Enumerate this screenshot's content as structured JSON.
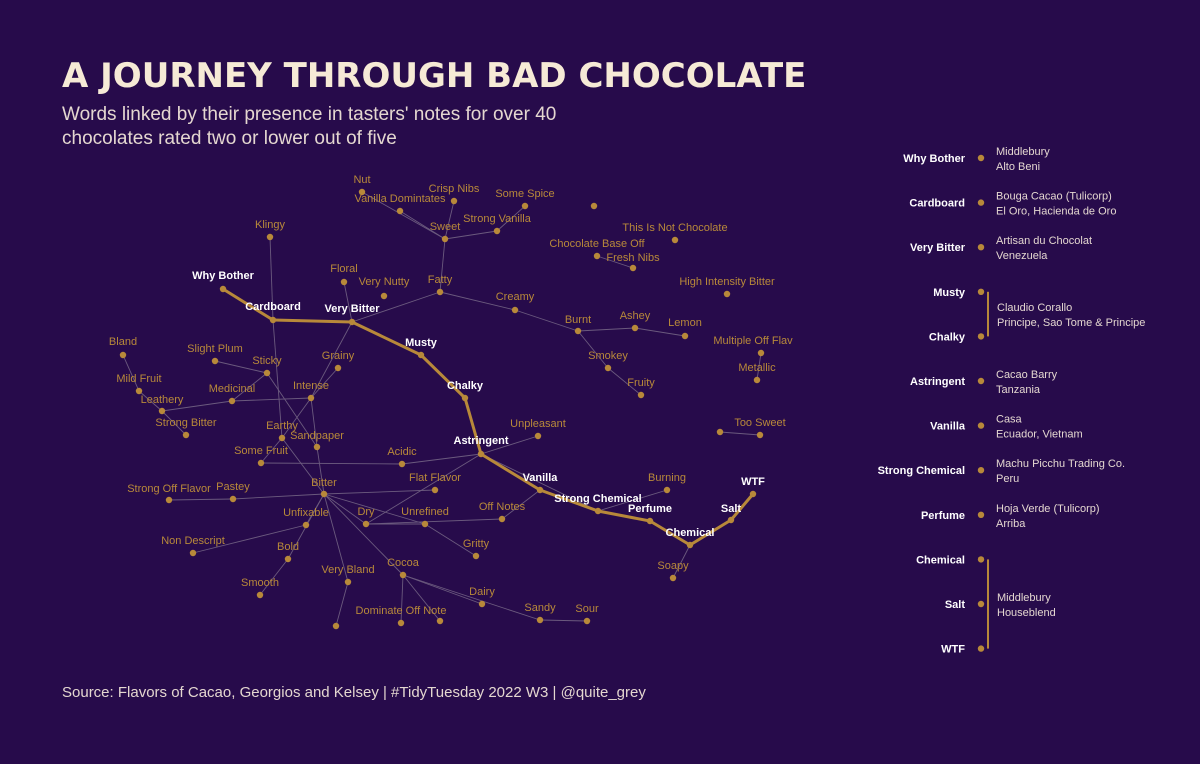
{
  "title": "A JOURNEY THROUGH BAD CHOCOLATE",
  "subtitle": "Words linked by their presence in tasters' notes for over 40 chocolates rated two or lower out of five",
  "source": "Source: Flavors of Cacao, Georgios and Kelsey  |  #TidyTuesday 2022 W3  |  @quite_grey",
  "colors": {
    "background": "#270b4b",
    "node": "#b8893a",
    "edge": "#6b5a7e",
    "highlight_text": "#ffffff"
  },
  "network": {
    "nodes": [
      {
        "id": "why_bother",
        "label": "Why Bother",
        "highlight": true
      },
      {
        "id": "cardboard",
        "label": "Cardboard",
        "highlight": true
      },
      {
        "id": "very_bitter",
        "label": "Very Bitter",
        "highlight": true
      },
      {
        "id": "musty",
        "label": "Musty",
        "highlight": true
      },
      {
        "id": "chalky",
        "label": "Chalky",
        "highlight": true
      },
      {
        "id": "astringent",
        "label": "Astringent",
        "highlight": true
      },
      {
        "id": "vanilla",
        "label": "Vanilla",
        "highlight": true
      },
      {
        "id": "strong_chemical",
        "label": "Strong Chemical",
        "highlight": true
      },
      {
        "id": "perfume",
        "label": "Perfume",
        "highlight": true
      },
      {
        "id": "chemical",
        "label": "Chemical",
        "highlight": true
      },
      {
        "id": "salt",
        "label": "Salt",
        "highlight": true
      },
      {
        "id": "wtf",
        "label": "WTF",
        "highlight": true
      },
      {
        "id": "nut",
        "label": "Nut"
      },
      {
        "id": "vanilla_domintates",
        "label": "Vanilla Domintates"
      },
      {
        "id": "crisp_nibs",
        "label": "Crisp Nibs"
      },
      {
        "id": "some_spice",
        "label": "Some Spice"
      },
      {
        "id": "sweet",
        "label": "Sweet"
      },
      {
        "id": "strong_vanilla",
        "label": "Strong Vanilla"
      },
      {
        "id": "klingy",
        "label": "Klingy"
      },
      {
        "id": "floral",
        "label": "Floral"
      },
      {
        "id": "very_nutty",
        "label": "Very Nutty"
      },
      {
        "id": "fatty",
        "label": "Fatty"
      },
      {
        "id": "creamy",
        "label": "Creamy"
      },
      {
        "id": "this_is_not_chocolate",
        "label": "This Is Not Chocolate"
      },
      {
        "id": "chocolate_base_off",
        "label": "Chocolate Base Off"
      },
      {
        "id": "fresh_nibs",
        "label": "Fresh Nibs"
      },
      {
        "id": "high_intensity_bitter",
        "label": "High Intensity Bitter"
      },
      {
        "id": "burnt",
        "label": "Burnt"
      },
      {
        "id": "ashey",
        "label": "Ashey"
      },
      {
        "id": "lemon",
        "label": "Lemon"
      },
      {
        "id": "smokey",
        "label": "Smokey"
      },
      {
        "id": "fruity",
        "label": "Fruity"
      },
      {
        "id": "multiple_off_flav",
        "label": "Multiple Off Flav"
      },
      {
        "id": "metallic",
        "label": "Metallic"
      },
      {
        "id": "too_sweet",
        "label": "Too Sweet"
      },
      {
        "id": "too_sweet_partner",
        "label": ""
      },
      {
        "id": "bland",
        "label": "Bland"
      },
      {
        "id": "mild_fruit",
        "label": "Mild Fruit"
      },
      {
        "id": "leathery",
        "label": "Leathery"
      },
      {
        "id": "slight_plum",
        "label": "Slight Plum"
      },
      {
        "id": "sticky",
        "label": "Sticky"
      },
      {
        "id": "grainy",
        "label": "Grainy"
      },
      {
        "id": "medicinal",
        "label": "Medicinal"
      },
      {
        "id": "intense",
        "label": "Intense"
      },
      {
        "id": "strong_bitter",
        "label": "Strong Bitter"
      },
      {
        "id": "earthy",
        "label": "Earthy"
      },
      {
        "id": "sandpaper",
        "label": "Sandpaper"
      },
      {
        "id": "some_fruit",
        "label": "Some Fruit"
      },
      {
        "id": "unpleasant",
        "label": "Unpleasant"
      },
      {
        "id": "acidic",
        "label": "Acidic"
      },
      {
        "id": "flat_flavor",
        "label": "Flat Flavor"
      },
      {
        "id": "burning",
        "label": "Burning"
      },
      {
        "id": "strong_off_flavor",
        "label": "Strong Off Flavor"
      },
      {
        "id": "pastey",
        "label": "Pastey"
      },
      {
        "id": "bitter",
        "label": "Bitter"
      },
      {
        "id": "off_notes",
        "label": "Off Notes"
      },
      {
        "id": "unfixable",
        "label": "Unfixable"
      },
      {
        "id": "dry",
        "label": "Dry"
      },
      {
        "id": "unrefined",
        "label": "Unrefined"
      },
      {
        "id": "non_descript",
        "label": "Non Descript"
      },
      {
        "id": "bold",
        "label": "Bold"
      },
      {
        "id": "gritty",
        "label": "Gritty"
      },
      {
        "id": "soapy",
        "label": "Soapy"
      },
      {
        "id": "smooth",
        "label": "Smooth"
      },
      {
        "id": "very_bland",
        "label": "Very Bland"
      },
      {
        "id": "very_bland_end",
        "label": ""
      },
      {
        "id": "cocoa",
        "label": "Cocoa"
      },
      {
        "id": "dairy",
        "label": "Dairy"
      },
      {
        "id": "dominate_off_note",
        "label": "Dominate Off Note"
      },
      {
        "id": "dominate_end",
        "label": ""
      },
      {
        "id": "sandy",
        "label": "Sandy"
      },
      {
        "id": "sour",
        "label": "Sour"
      },
      {
        "id": "lone_dot",
        "label": ""
      }
    ],
    "edges": [
      [
        "why_bother",
        "cardboard",
        true
      ],
      [
        "cardboard",
        "very_bitter",
        true
      ],
      [
        "very_bitter",
        "musty",
        true
      ],
      [
        "musty",
        "chalky",
        true
      ],
      [
        "chalky",
        "astringent",
        true
      ],
      [
        "astringent",
        "vanilla",
        true
      ],
      [
        "vanilla",
        "strong_chemical",
        true
      ],
      [
        "strong_chemical",
        "perfume",
        true
      ],
      [
        "perfume",
        "chemical",
        true
      ],
      [
        "chemical",
        "salt",
        true
      ],
      [
        "salt",
        "wtf",
        true
      ],
      [
        "nut",
        "sweet"
      ],
      [
        "vanilla_domintates",
        "sweet"
      ],
      [
        "crisp_nibs",
        "sweet"
      ],
      [
        "sweet",
        "strong_vanilla"
      ],
      [
        "strong_vanilla",
        "some_spice"
      ],
      [
        "sweet",
        "fatty"
      ],
      [
        "fatty",
        "very_bitter"
      ],
      [
        "fatty",
        "creamy"
      ],
      [
        "creamy",
        "burnt"
      ],
      [
        "burnt",
        "ashey"
      ],
      [
        "ashey",
        "lemon"
      ],
      [
        "burnt",
        "smokey"
      ],
      [
        "smokey",
        "fruity"
      ],
      [
        "chocolate_base_off",
        "fresh_nibs"
      ],
      [
        "multiple_off_flav",
        "metallic"
      ],
      [
        "too_sweet_partner",
        "too_sweet"
      ],
      [
        "klingy",
        "cardboard"
      ],
      [
        "floral",
        "very_bitter"
      ],
      [
        "cardboard",
        "earthy"
      ],
      [
        "very_bitter",
        "intense"
      ],
      [
        "bland",
        "mild_fruit"
      ],
      [
        "mild_fruit",
        "leathery"
      ],
      [
        "leathery",
        "strong_bitter"
      ],
      [
        "leathery",
        "medicinal"
      ],
      [
        "medicinal",
        "sticky"
      ],
      [
        "slight_plum",
        "sticky"
      ],
      [
        "sticky",
        "sandpaper"
      ],
      [
        "medicinal",
        "intense"
      ],
      [
        "grainy",
        "intense"
      ],
      [
        "intense",
        "earthy"
      ],
      [
        "intense",
        "sandpaper"
      ],
      [
        "earthy",
        "some_fruit"
      ],
      [
        "sandpaper",
        "bitter"
      ],
      [
        "earthy",
        "bitter"
      ],
      [
        "some_fruit",
        "acidic"
      ],
      [
        "acidic",
        "astringent"
      ],
      [
        "astringent",
        "unpleasant"
      ],
      [
        "astringent",
        "dry"
      ],
      [
        "astringent",
        "strong_chemical"
      ],
      [
        "strong_off_flavor",
        "pastey"
      ],
      [
        "pastey",
        "bitter"
      ],
      [
        "bitter",
        "unfixable"
      ],
      [
        "unfixable",
        "non_descript"
      ],
      [
        "bitter",
        "bold"
      ],
      [
        "bold",
        "smooth"
      ],
      [
        "bitter",
        "dry"
      ],
      [
        "bitter",
        "unrefined"
      ],
      [
        "bitter",
        "flat_flavor"
      ],
      [
        "bitter",
        "cocoa"
      ],
      [
        "bitter",
        "very_bland"
      ],
      [
        "very_bland",
        "very_bland_end"
      ],
      [
        "dry",
        "unrefined"
      ],
      [
        "unrefined",
        "gritty"
      ],
      [
        "dry",
        "off_notes"
      ],
      [
        "off_notes",
        "vanilla"
      ],
      [
        "burning",
        "strong_chemical"
      ],
      [
        "chemical",
        "soapy"
      ],
      [
        "cocoa",
        "dairy"
      ],
      [
        "cocoa",
        "dominate_off_note"
      ],
      [
        "cocoa",
        "dominate_end"
      ],
      [
        "cocoa",
        "sandy"
      ],
      [
        "sandy",
        "sour"
      ]
    ]
  },
  "legend": {
    "items": [
      {
        "label": "Why Bother",
        "description": [
          "Middlebury",
          "Alto Beni"
        ]
      },
      {
        "label": "Cardboard",
        "description": [
          "Bouga Cacao (Tulicorp)",
          "El Oro, Hacienda de Oro"
        ]
      },
      {
        "label": "Very Bitter",
        "description": [
          "Artisan du Chocolat",
          "Venezuela"
        ]
      },
      {
        "label": "Musty",
        "description": []
      },
      {
        "label": "Chalky",
        "description": []
      },
      {
        "label": "Astringent",
        "description": [
          "Cacao Barry",
          "Tanzania"
        ]
      },
      {
        "label": "Vanilla",
        "description": [
          "Casa",
          "Ecuador, Vietnam"
        ]
      },
      {
        "label": "Strong Chemical",
        "description": [
          "Machu Picchu Trading Co.",
          "Peru"
        ]
      },
      {
        "label": "Perfume",
        "description": [
          "Hoja Verde (Tulicorp)",
          "Arriba"
        ]
      },
      {
        "label": "Chemical",
        "description": []
      },
      {
        "label": "Salt",
        "description": []
      },
      {
        "label": "WTF",
        "description": []
      }
    ],
    "groups": [
      {
        "span": [
          "Musty",
          "Chalky"
        ],
        "description": [
          "Claudio Corallo",
          "Principe, Sao Tome & Principe"
        ]
      },
      {
        "span": [
          "Chemical",
          "WTF"
        ],
        "description": [
          "Middlebury",
          "Houseblend"
        ]
      }
    ]
  }
}
